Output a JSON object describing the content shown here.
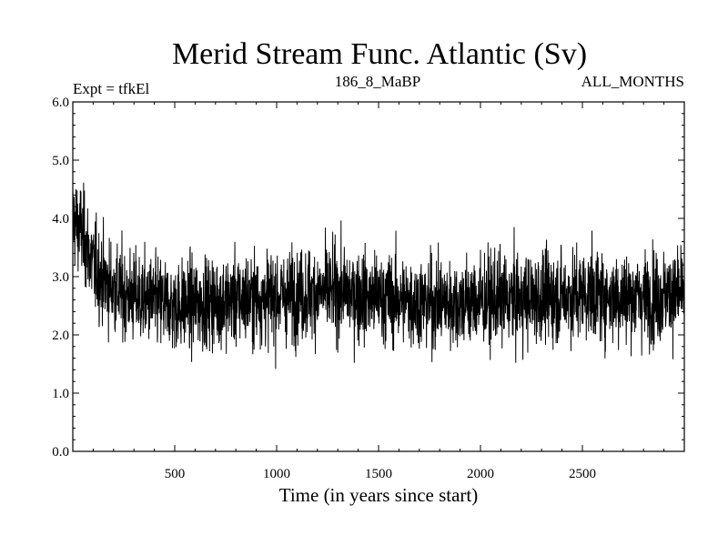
{
  "chart_data": {
    "type": "line",
    "title": "Merid Stream Func. Atlantic (Sv)",
    "left_note": "Expt = tfkEl",
    "center_note": "186_8_MaBP",
    "right_note": "ALL_MONTHS",
    "xlabel": "Time (in years since start)",
    "ylabel": "",
    "xlim": [
      0,
      3000
    ],
    "ylim": [
      0.0,
      6.0
    ],
    "x_ticks": [
      500,
      1000,
      1500,
      2000,
      2500
    ],
    "x_tick_labels": [
      "500",
      "1000",
      "1500",
      "2000",
      "2500"
    ],
    "y_ticks": [
      0.0,
      1.0,
      2.0,
      3.0,
      4.0,
      5.0,
      6.0
    ],
    "y_tick_labels": [
      "0.0",
      "1.0",
      "2.0",
      "3.0",
      "4.0",
      "5.0",
      "6.0"
    ],
    "grid": false,
    "line_color": "#000000",
    "series": [
      {
        "x": [
          0,
          40,
          100,
          160,
          250,
          350,
          500,
          650,
          800,
          1000,
          1150,
          1300,
          1450,
          1600,
          1750,
          1900,
          2050,
          2200,
          2350,
          2500,
          2650,
          2800,
          3000
        ],
        "values": [
          4.0,
          3.8,
          3.2,
          2.9,
          2.7,
          2.6,
          2.5,
          2.55,
          2.6,
          2.65,
          2.7,
          2.75,
          2.65,
          2.6,
          2.55,
          2.55,
          2.6,
          2.6,
          2.65,
          2.7,
          2.65,
          2.65,
          2.7
        ]
      }
    ]
  }
}
